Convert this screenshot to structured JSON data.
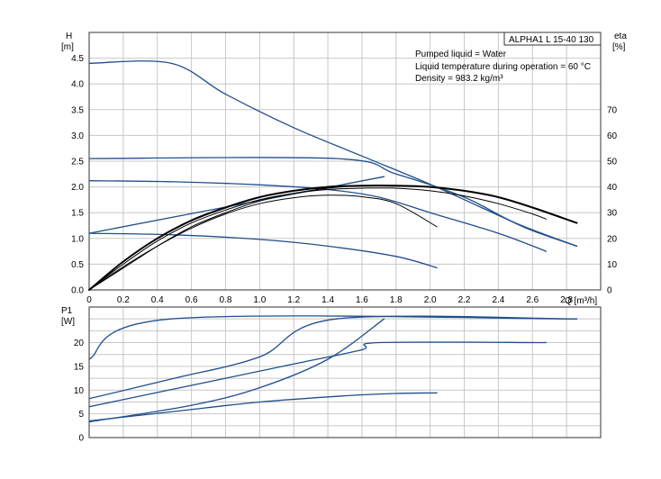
{
  "chart_data": [
    {
      "type": "line",
      "title": "ALPHA1 L 15-40 130",
      "info": [
        "Pumped liquid = Water",
        "Liquid temperature during operation = 60 °C",
        "Density = 983.2 kg/m³"
      ],
      "xlabel": "Q [m³/h]",
      "ylabel_left": "H",
      "ylabel_left_unit": "[m]",
      "ylabel_right": "eta",
      "ylabel_right_unit": "[%]",
      "xlim": [
        0,
        3.0
      ],
      "ylim_left": [
        0,
        5.0
      ],
      "ylim_right": [
        0,
        100
      ],
      "x_ticks": [
        "0",
        "0.2",
        "0.4",
        "0.6",
        "0.8",
        "1.0",
        "1.2",
        "1.4",
        "1.6",
        "1.8",
        "2.0",
        "2.2",
        "2.4",
        "2.6",
        "2.8"
      ],
      "y_ticks_left": [
        "0.0",
        "0.5",
        "1.0",
        "1.5",
        "2.0",
        "2.5",
        "3.0",
        "3.5",
        "4.0",
        "4.5"
      ],
      "y_ticks_right": [
        "0",
        "10",
        "20",
        "30",
        "40",
        "50",
        "60",
        "70"
      ],
      "grid": true,
      "series": [
        {
          "color": "#1f4e8c",
          "axis": "left",
          "points": [
            [
              0,
              4.4
            ],
            [
              0.48,
              4.4
            ],
            [
              0.8,
              3.8
            ],
            [
              1.2,
              3.15
            ],
            [
              1.6,
              2.6
            ],
            [
              2.0,
              2.05
            ],
            [
              2.4,
              1.45
            ],
            [
              2.6,
              1.15
            ],
            [
              2.86,
              0.85
            ]
          ]
        },
        {
          "color": "#1f4e8c",
          "axis": "left",
          "points": [
            [
              0,
              2.55
            ],
            [
              1.45,
              2.55
            ],
            [
              1.8,
              2.25
            ],
            [
              2.2,
              1.8
            ],
            [
              2.5,
              1.3
            ],
            [
              2.86,
              0.85
            ]
          ]
        },
        {
          "color": "#1f4e8c",
          "axis": "left",
          "points": [
            [
              0,
              2.12
            ],
            [
              0.5,
              2.1
            ],
            [
              1.0,
              2.04
            ],
            [
              1.4,
              1.95
            ],
            [
              1.7,
              1.8
            ],
            [
              2.0,
              1.5
            ],
            [
              2.4,
              1.1
            ],
            [
              2.68,
              0.75
            ]
          ]
        },
        {
          "color": "#1f4e8c",
          "axis": "left",
          "points": [
            [
              0,
              1.1
            ],
            [
              0.5,
              1.07
            ],
            [
              1.0,
              0.98
            ],
            [
              1.4,
              0.85
            ],
            [
              1.8,
              0.65
            ],
            [
              2.04,
              0.43
            ]
          ]
        },
        {
          "color": "#1f4e8c",
          "axis": "left",
          "points": [
            [
              0,
              1.1
            ],
            [
              1.73,
              2.2
            ]
          ]
        },
        {
          "color": "#000000",
          "axis": "right",
          "width": 2,
          "points": [
            [
              0,
              0
            ],
            [
              0.2,
              11
            ],
            [
              0.4,
              20
            ],
            [
              0.6,
              27
            ],
            [
              0.8,
              32
            ],
            [
              1.0,
              36
            ],
            [
              1.2,
              38.5
            ],
            [
              1.4,
              40
            ],
            [
              1.6,
              40.5
            ],
            [
              1.8,
              40.5
            ],
            [
              2.0,
              40
            ],
            [
              2.2,
              38.5
            ],
            [
              2.4,
              36
            ],
            [
              2.6,
              32
            ],
            [
              2.86,
              26
            ]
          ]
        },
        {
          "color": "#000000",
          "axis": "right",
          "width": 1,
          "points": [
            [
              0,
              0
            ],
            [
              0.2,
              10
            ],
            [
              0.4,
              19
            ],
            [
              0.6,
              26
            ],
            [
              0.8,
              31
            ],
            [
              1.0,
              35
            ],
            [
              1.2,
              37.5
            ],
            [
              1.4,
              39
            ],
            [
              1.6,
              39.5
            ],
            [
              1.8,
              39.5
            ],
            [
              2.0,
              38.5
            ],
            [
              2.2,
              36.5
            ],
            [
              2.4,
              33.5
            ],
            [
              2.6,
              29.5
            ],
            [
              2.68,
              27.5
            ]
          ]
        },
        {
          "color": "#000000",
          "axis": "right",
          "width": 1,
          "points": [
            [
              0,
              0
            ],
            [
              0.2,
              9
            ],
            [
              0.4,
              17
            ],
            [
              0.6,
              24
            ],
            [
              0.8,
              29.5
            ],
            [
              1.0,
              33.5
            ],
            [
              1.2,
              35.8
            ],
            [
              1.4,
              36.8
            ],
            [
              1.6,
              36.2
            ],
            [
              1.8,
              33.5
            ],
            [
              2.04,
              24.5
            ]
          ]
        },
        {
          "color": "#000000",
          "axis": "right",
          "width": 1,
          "points": [
            [
              0,
              0
            ],
            [
              0.2,
              8.5
            ],
            [
              0.4,
              17
            ],
            [
              0.6,
              24.5
            ],
            [
              0.8,
              30
            ],
            [
              1.0,
              34.5
            ],
            [
              1.2,
              37.5
            ],
            [
              1.4,
              39.5
            ],
            [
              1.6,
              40.5
            ],
            [
              1.73,
              40.5
            ]
          ]
        }
      ]
    },
    {
      "type": "line",
      "xlim": [
        0,
        3.0
      ],
      "ylabel": "P1",
      "ylabel_unit": "[W]",
      "ylim": [
        0,
        27.5
      ],
      "y_ticks": [
        "0",
        "5",
        "10",
        "15",
        "20"
      ],
      "grid": true,
      "series": [
        {
          "color": "#1f4e8c",
          "points": [
            [
              0,
              16.5
            ],
            [
              0.48,
              25
            ],
            [
              2.86,
              25
            ]
          ]
        },
        {
          "color": "#1f4e8c",
          "points": [
            [
              0,
              8.2
            ],
            [
              0.5,
              12.5
            ],
            [
              1.0,
              17
            ],
            [
              1.45,
              25
            ],
            [
              2.86,
              25
            ]
          ]
        },
        {
          "color": "#1f4e8c",
          "points": [
            [
              0,
              6.5
            ],
            [
              0.6,
              11
            ],
            [
              1.2,
              15.5
            ],
            [
              1.6,
              18.5
            ],
            [
              1.7,
              20
            ],
            [
              2.68,
              20
            ]
          ]
        },
        {
          "color": "#1f4e8c",
          "points": [
            [
              0,
              3.3
            ],
            [
              0.6,
              6.8
            ],
            [
              1.0,
              10.5
            ],
            [
              1.4,
              16.5
            ],
            [
              1.73,
              25
            ]
          ]
        },
        {
          "color": "#1f4e8c",
          "points": [
            [
              0,
              3.5
            ],
            [
              0.5,
              5.5
            ],
            [
              1.0,
              7.5
            ],
            [
              1.5,
              8.8
            ],
            [
              1.8,
              9.3
            ],
            [
              2.04,
              9.4
            ]
          ]
        }
      ]
    }
  ]
}
